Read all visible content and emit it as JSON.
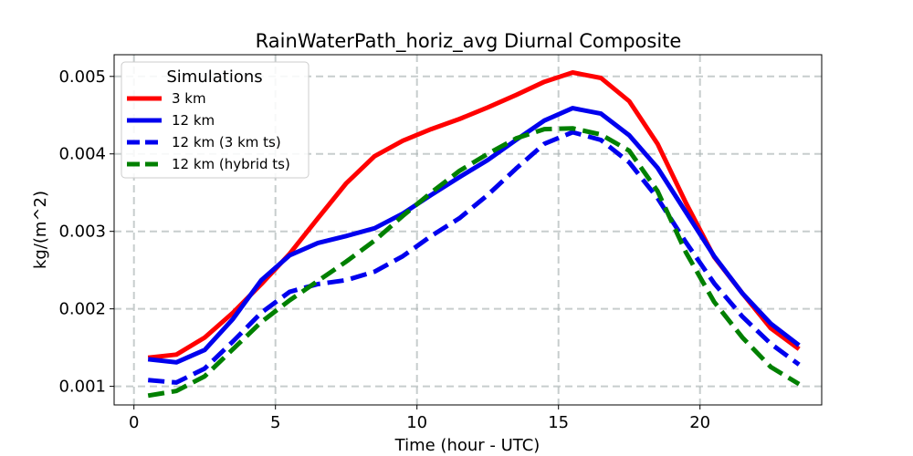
{
  "chart_data": {
    "type": "line",
    "title": "RainWaterPath_horiz_avg Diurnal Composite",
    "xlabel": "Time (hour - UTC)",
    "ylabel": "kg/(m^2)",
    "xlim": [
      -0.7,
      24.3
    ],
    "ylim": [
      0.00076,
      0.00528
    ],
    "xticks": [
      0,
      5,
      10,
      15,
      20
    ],
    "xtick_labels": [
      "0",
      "5",
      "10",
      "15",
      "20"
    ],
    "yticks": [
      0.001,
      0.002,
      0.003,
      0.004,
      0.005
    ],
    "ytick_labels": [
      "0.001",
      "0.002",
      "0.003",
      "0.004",
      "0.005"
    ],
    "grid": true,
    "legend": {
      "title": "Simulations",
      "placement": "upper-left"
    },
    "x": [
      0.5,
      1.5,
      2.5,
      3.5,
      4.5,
      5.5,
      6.5,
      7.5,
      8.5,
      9.5,
      10.5,
      11.5,
      12.5,
      13.5,
      14.5,
      15.5,
      16.5,
      17.5,
      18.5,
      19.5,
      20.5,
      21.5,
      22.5,
      23.5
    ],
    "series": [
      {
        "name": "3 km",
        "color": "#ff0000",
        "style": "solid",
        "values": [
          0.00137,
          0.00141,
          0.00163,
          0.00195,
          0.00232,
          0.00271,
          0.00317,
          0.00362,
          0.00397,
          0.00417,
          0.00432,
          0.00445,
          0.0046,
          0.00476,
          0.00493,
          0.00505,
          0.00498,
          0.00468,
          0.00413,
          0.00337,
          0.00267,
          0.0022,
          0.00175,
          0.00148
        ]
      },
      {
        "name": "12 km",
        "color": "#0000ee",
        "style": "solid",
        "values": [
          0.00135,
          0.00131,
          0.00147,
          0.00187,
          0.00237,
          0.00269,
          0.00285,
          0.00294,
          0.00304,
          0.00323,
          0.00347,
          0.0037,
          0.00392,
          0.00418,
          0.00443,
          0.00459,
          0.00452,
          0.00424,
          0.00382,
          0.00325,
          0.00268,
          0.0022,
          0.00181,
          0.00153
        ]
      },
      {
        "name": "12 km (3 km ts)",
        "color": "#0000ee",
        "style": "dashed",
        "values": [
          0.00108,
          0.00105,
          0.00123,
          0.00158,
          0.00195,
          0.00222,
          0.00232,
          0.00237,
          0.00248,
          0.00268,
          0.00294,
          0.00317,
          0.00347,
          0.00381,
          0.00413,
          0.00428,
          0.00418,
          0.00389,
          0.00343,
          0.00286,
          0.00233,
          0.0019,
          0.00155,
          0.00128
        ]
      },
      {
        "name": "12 km (hybrid ts)",
        "color": "#008000",
        "style": "dashed",
        "values": [
          0.00088,
          0.00094,
          0.00113,
          0.00148,
          0.00183,
          0.00211,
          0.00236,
          0.00261,
          0.00288,
          0.0032,
          0.0035,
          0.00378,
          0.004,
          0.0042,
          0.00432,
          0.00433,
          0.00425,
          0.00404,
          0.00352,
          0.00273,
          0.00209,
          0.00163,
          0.00125,
          0.00103
        ]
      }
    ]
  }
}
